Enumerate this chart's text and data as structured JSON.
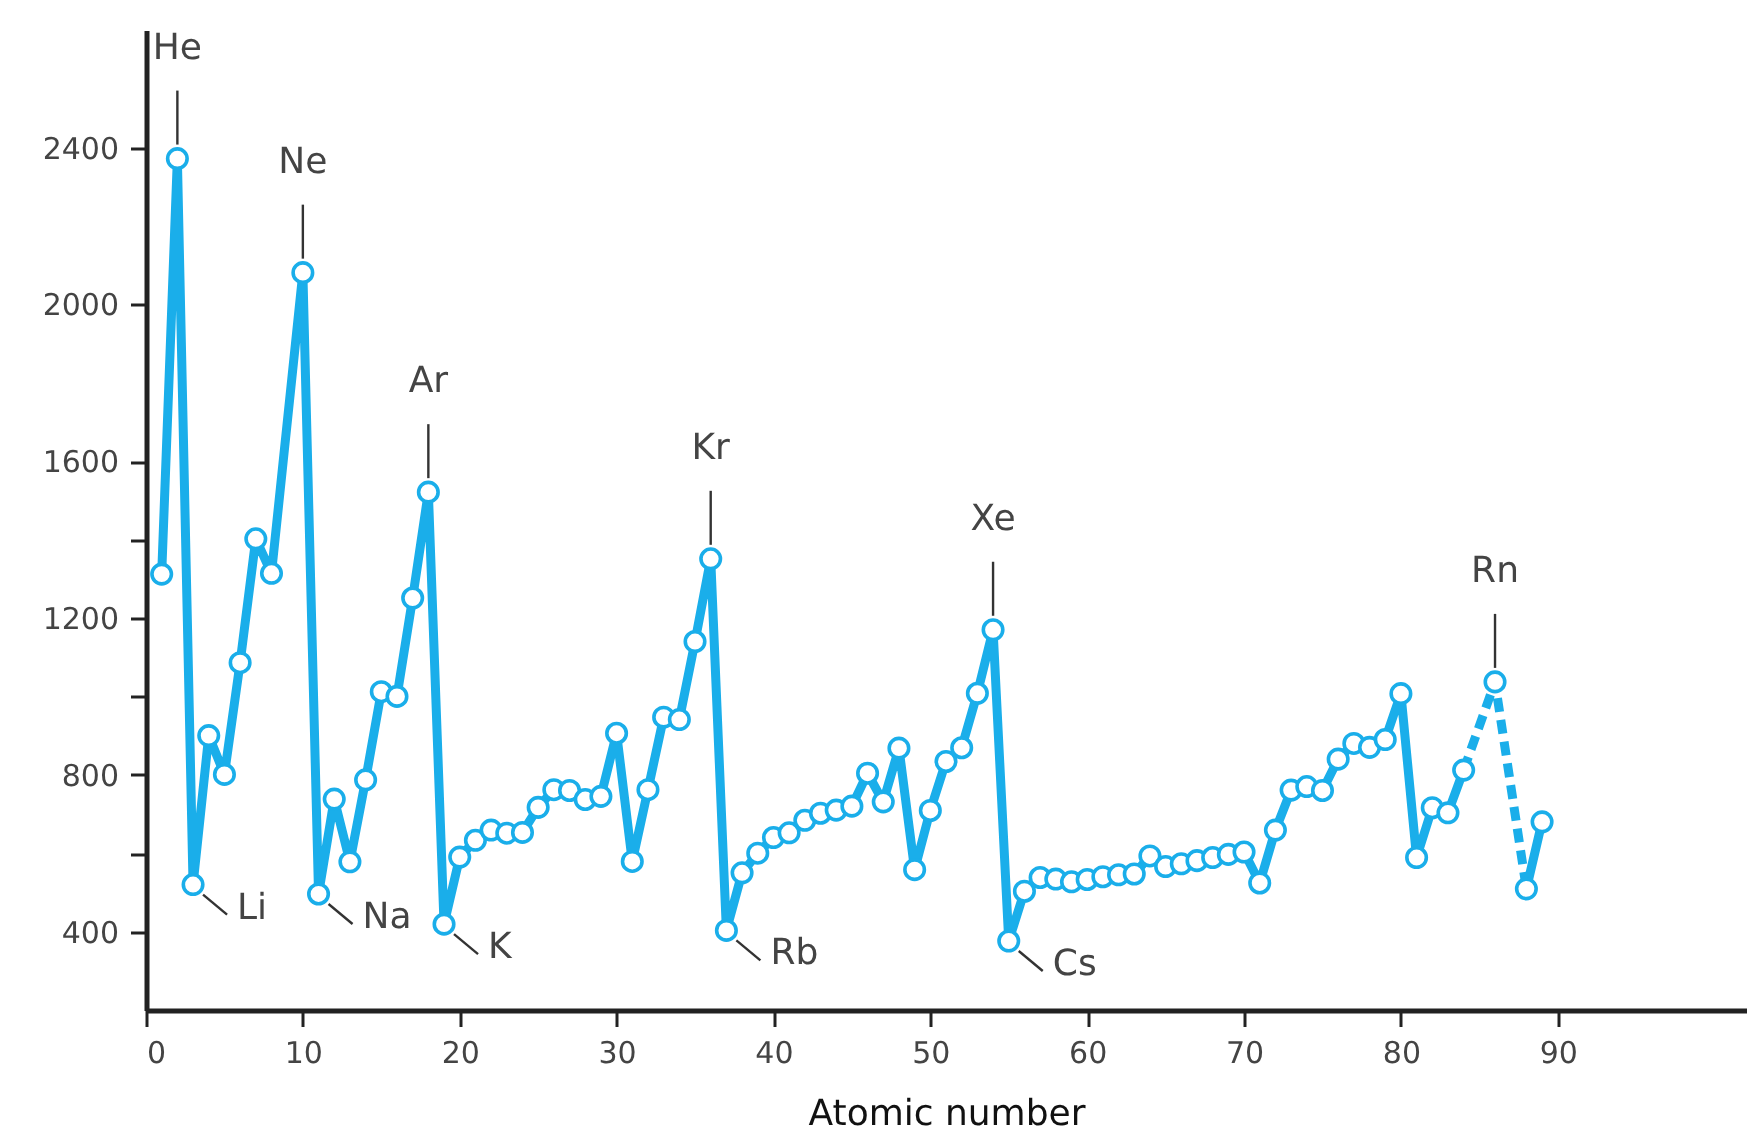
{
  "chart_data": {
    "type": "line",
    "xlabel": "Atomic number",
    "xlim": [
      0,
      102
    ],
    "xticks": [
      0,
      10,
      20,
      30,
      40,
      50,
      60,
      70,
      80,
      90
    ],
    "ylim": [
      200,
      2700
    ],
    "yticks": [
      400,
      {
        "value": 600,
        "label": null
      },
      800,
      {
        "value": 1000,
        "label": null
      },
      1200,
      {
        "value": 1400,
        "label": null
      },
      1600,
      2000,
      2400
    ],
    "series": [
      {
        "color": "#1aaeea",
        "line_style": "dashed",
        "x": [
          84,
          86,
          88
        ],
        "values": [
          812,
          1037,
          509
        ]
      },
      {
        "color": "#1aaeea",
        "line_style": "solid",
        "marker": "circle",
        "x": [
          1,
          2,
          3,
          4,
          5,
          6,
          7,
          8,
          10,
          11,
          12,
          13,
          14,
          15,
          16,
          17,
          18,
          19,
          20,
          21,
          22,
          23,
          24,
          25,
          26,
          27,
          28,
          29,
          30,
          31,
          32,
          33,
          34,
          35,
          36,
          37,
          38,
          39,
          40,
          41,
          42,
          43,
          44,
          45,
          46,
          47,
          48,
          49,
          50,
          51,
          52,
          53,
          54,
          55,
          56,
          57,
          58,
          59,
          60,
          61,
          62,
          63,
          64,
          65,
          66,
          67,
          68,
          69,
          70,
          71,
          72,
          73,
          74,
          75,
          76,
          77,
          78,
          79,
          80,
          81,
          82,
          83,
          84,
          85,
          86,
          87,
          88,
          89
        ],
        "values": [
          1312,
          2372,
          520,
          900,
          801,
          1086,
          1402,
          1314,
          2081,
          496,
          738,
          578,
          787,
          1012,
          1000,
          1251,
          1521,
          419,
          590,
          633,
          659,
          651,
          653,
          717,
          762,
          760,
          737,
          745,
          906,
          579,
          762,
          947,
          941,
          1140,
          1351,
          403,
          550,
          600,
          640,
          652,
          684,
          702,
          710,
          720,
          804,
          731,
          868,
          558,
          709,
          834,
          869,
          1008,
          1170,
          376,
          503,
          538,
          534,
          527,
          533,
          540,
          545,
          547,
          593,
          566,
          573,
          581,
          589,
          597,
          603,
          524,
          659,
          761,
          770,
          760,
          840,
          880,
          870,
          890,
          1007,
          589,
          716,
          703,
          812,
          null,
          1037,
          null,
          509,
          680
        ]
      }
    ],
    "annotations": [
      {
        "text": "He",
        "x": 2,
        "y": 2372
      },
      {
        "text": "Ne",
        "x": 10,
        "y": 2081
      },
      {
        "text": "Ar",
        "x": 18,
        "y": 1521
      },
      {
        "text": "Kr",
        "x": 36,
        "y": 1351
      },
      {
        "text": "Xe",
        "x": 54,
        "y": 1170
      },
      {
        "text": "Rn",
        "x": 86,
        "y": 1037
      },
      {
        "text": "Li",
        "x": 3,
        "y": 520
      },
      {
        "text": "Na",
        "x": 11,
        "y": 496
      },
      {
        "text": "K",
        "x": 19,
        "y": 419
      },
      {
        "text": "Rb",
        "x": 37,
        "y": 403
      },
      {
        "text": "Cs",
        "x": 55,
        "y": 376
      }
    ]
  }
}
